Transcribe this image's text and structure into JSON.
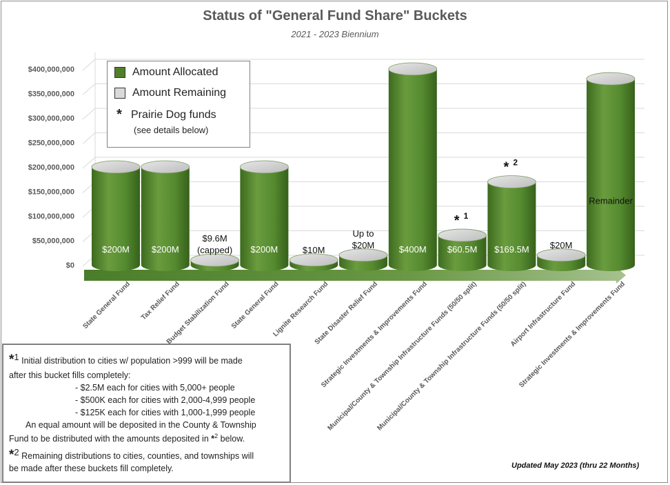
{
  "chart_data": {
    "type": "bar",
    "title": "Status of \"General Fund Share\" Buckets",
    "subtitle": "2021 - 2023 Biennium",
    "ylim": [
      0,
      400000000
    ],
    "y_ticks": [
      "$0",
      "$50,000,000",
      "$100,000,000",
      "$150,000,000",
      "$200,000,000",
      "$250,000,000",
      "$300,000,000",
      "$350,000,000",
      "$400,000,000"
    ],
    "y_tick_values": [
      0,
      50000000,
      100000000,
      150000000,
      200000000,
      250000000,
      300000000,
      350000000,
      400000000
    ],
    "grid": true,
    "categories": [
      "State General Fund",
      "Tax Relief Fund",
      "Budget Stabilization Fund",
      "State General Fund",
      "Lignite Research Fund",
      "State Disaster Relief Fund",
      "Strategic Investments & Improvements Fund",
      "Municipal/County & Township Infrastructure Funds (50/50 split)",
      "Municipal/County & Township Infrastructure Funds (50/50 split)",
      "Airport Infrastructure Fund",
      "Strategic Investments & Improvements Fund"
    ],
    "series": [
      {
        "name": "Amount Allocated",
        "color": "#5a8a32",
        "values": [
          200000000,
          200000000,
          9600000,
          200000000,
          10000000,
          20000000,
          400000000,
          60500000,
          169500000,
          20000000,
          380000000
        ]
      },
      {
        "name": "Amount Remaining",
        "color": "#d9d9d9",
        "values": [
          0,
          0,
          0,
          0,
          0,
          0,
          0,
          0,
          0,
          0,
          0
        ]
      }
    ],
    "bar_labels": [
      "$200M",
      "$200M",
      "$9.6M\n(capped)",
      "$200M",
      "$10M",
      "Up to\n$20M",
      "$400M",
      "$60.5M",
      "$169.5M",
      "$20M",
      "Remainder"
    ],
    "bar_markers": [
      "",
      "",
      "",
      "",
      "",
      "",
      "",
      "*1",
      "*2",
      "",
      ""
    ],
    "legend": {
      "position": "top-left",
      "allocated_label": "Amount Allocated",
      "remaining_label": "Amount Remaining",
      "prairie_label": "Prairie Dog funds",
      "prairie_sub": "(see details below)",
      "allocated_color": "#4f7f2a",
      "remaining_color": "#d9d9d9"
    }
  },
  "footnotes": {
    "fn1_intro": "Initial distribution to cities w/ population >999 will be made",
    "fn1_line2": "after this bucket fills completely:",
    "fn1_item1": "- $2.5M each for cities with 5,000+ people",
    "fn1_item2": "- $500K each for cities with 2,000-4,999 people",
    "fn1_item3": "- $125K each for cities with 1,000-1,999 people",
    "fn1_line6": "An equal amount will be deposited in the County & Township",
    "fn1_line7a": "Fund to be distributed with the amounts deposited in",
    "fn1_line7b": "below.",
    "fn2_intro": "Remaining distributions to cities, counties, and townships will",
    "fn2_line2": "be made after these buckets fill completely."
  },
  "updated_note": "Updated May 2023 (thru 22 Months)"
}
